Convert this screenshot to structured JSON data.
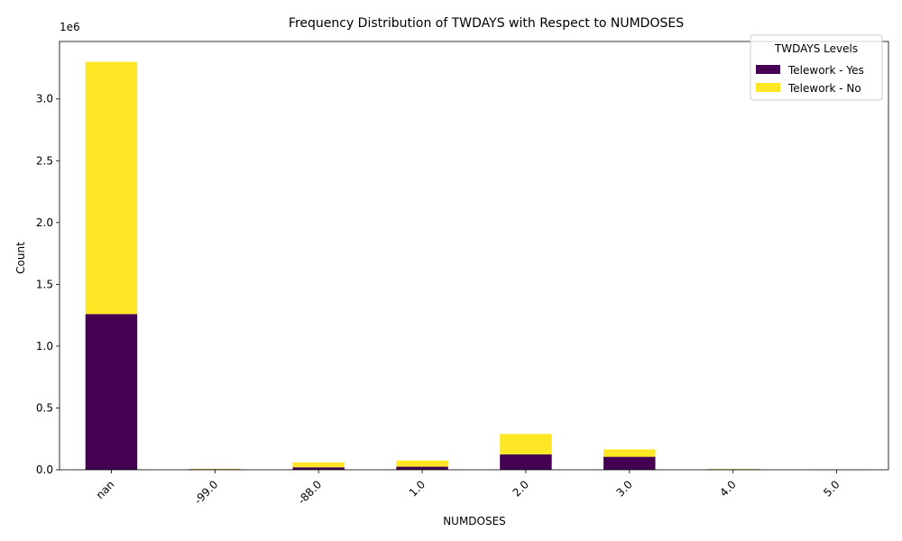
{
  "chart_data": {
    "type": "bar",
    "stacked": true,
    "title": "Frequency Distribution of TWDAYS with Respect to NUMDOSES",
    "xlabel": "NUMDOSES",
    "ylabel": "Count",
    "y_scale_note": "1e6",
    "ylim": [
      0,
      3.465
    ],
    "yticks": [
      0.0,
      0.5,
      1.0,
      1.5,
      2.0,
      2.5,
      3.0
    ],
    "ytick_labels": [
      "0.0",
      "0.5",
      "1.0",
      "1.5",
      "2.0",
      "2.5",
      "3.0"
    ],
    "categories": [
      "nan",
      "-99.0",
      "-88.0",
      "1.0",
      "2.0",
      "3.0",
      "4.0",
      "5.0"
    ],
    "series": [
      {
        "name": "Telework - Yes",
        "color": "#440154",
        "values": [
          1.26,
          0.005,
          0.02,
          0.025,
          0.125,
          0.105,
          0.004,
          0.0005
        ]
      },
      {
        "name": "Telework - No",
        "color": "#fde725",
        "values": [
          2.04,
          0.003,
          0.04,
          0.05,
          0.165,
          0.06,
          0.002,
          0.0003
        ]
      }
    ],
    "legend": {
      "title": "TWDAYS Levels",
      "placement": "top-right"
    },
    "grid": false
  }
}
